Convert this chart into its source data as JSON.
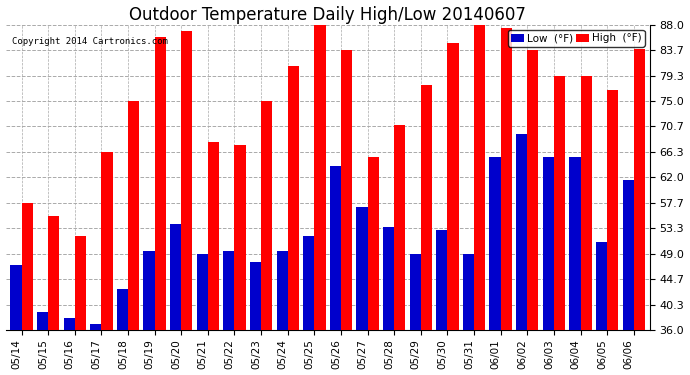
{
  "title": "Outdoor Temperature Daily High/Low 20140607",
  "copyright": "Copyright 2014 Cartronics.com",
  "legend_low": "Low  (°F)",
  "legend_high": "High  (°F)",
  "dates": [
    "05/14",
    "05/15",
    "05/16",
    "05/17",
    "05/18",
    "05/19",
    "05/20",
    "05/21",
    "05/22",
    "05/23",
    "05/24",
    "05/25",
    "05/26",
    "05/27",
    "05/28",
    "05/29",
    "05/30",
    "05/31",
    "06/01",
    "06/02",
    "06/03",
    "06/04",
    "06/05",
    "06/06"
  ],
  "highs": [
    57.7,
    55.4,
    52.0,
    66.3,
    75.0,
    86.0,
    87.0,
    68.0,
    67.5,
    75.0,
    81.0,
    88.0,
    83.7,
    65.5,
    71.0,
    77.7,
    85.0,
    88.0,
    87.5,
    83.7,
    79.3,
    79.3,
    77.0,
    84.0
  ],
  "lows": [
    47.0,
    39.0,
    38.0,
    37.0,
    43.0,
    49.5,
    54.0,
    49.0,
    49.5,
    47.5,
    49.5,
    52.0,
    64.0,
    57.0,
    53.5,
    49.0,
    53.0,
    49.0,
    65.5,
    69.5,
    65.5,
    65.5,
    51.0,
    61.5
  ],
  "ylim": [
    36.0,
    88.0
  ],
  "yticks": [
    36.0,
    40.3,
    44.7,
    49.0,
    53.3,
    57.7,
    62.0,
    66.3,
    70.7,
    75.0,
    79.3,
    83.7,
    88.0
  ],
  "high_color": "#ff0000",
  "low_color": "#0000cc",
  "bg_color": "#ffffff",
  "grid_color": "#aaaaaa",
  "title_fontsize": 12,
  "bar_width": 0.42
}
